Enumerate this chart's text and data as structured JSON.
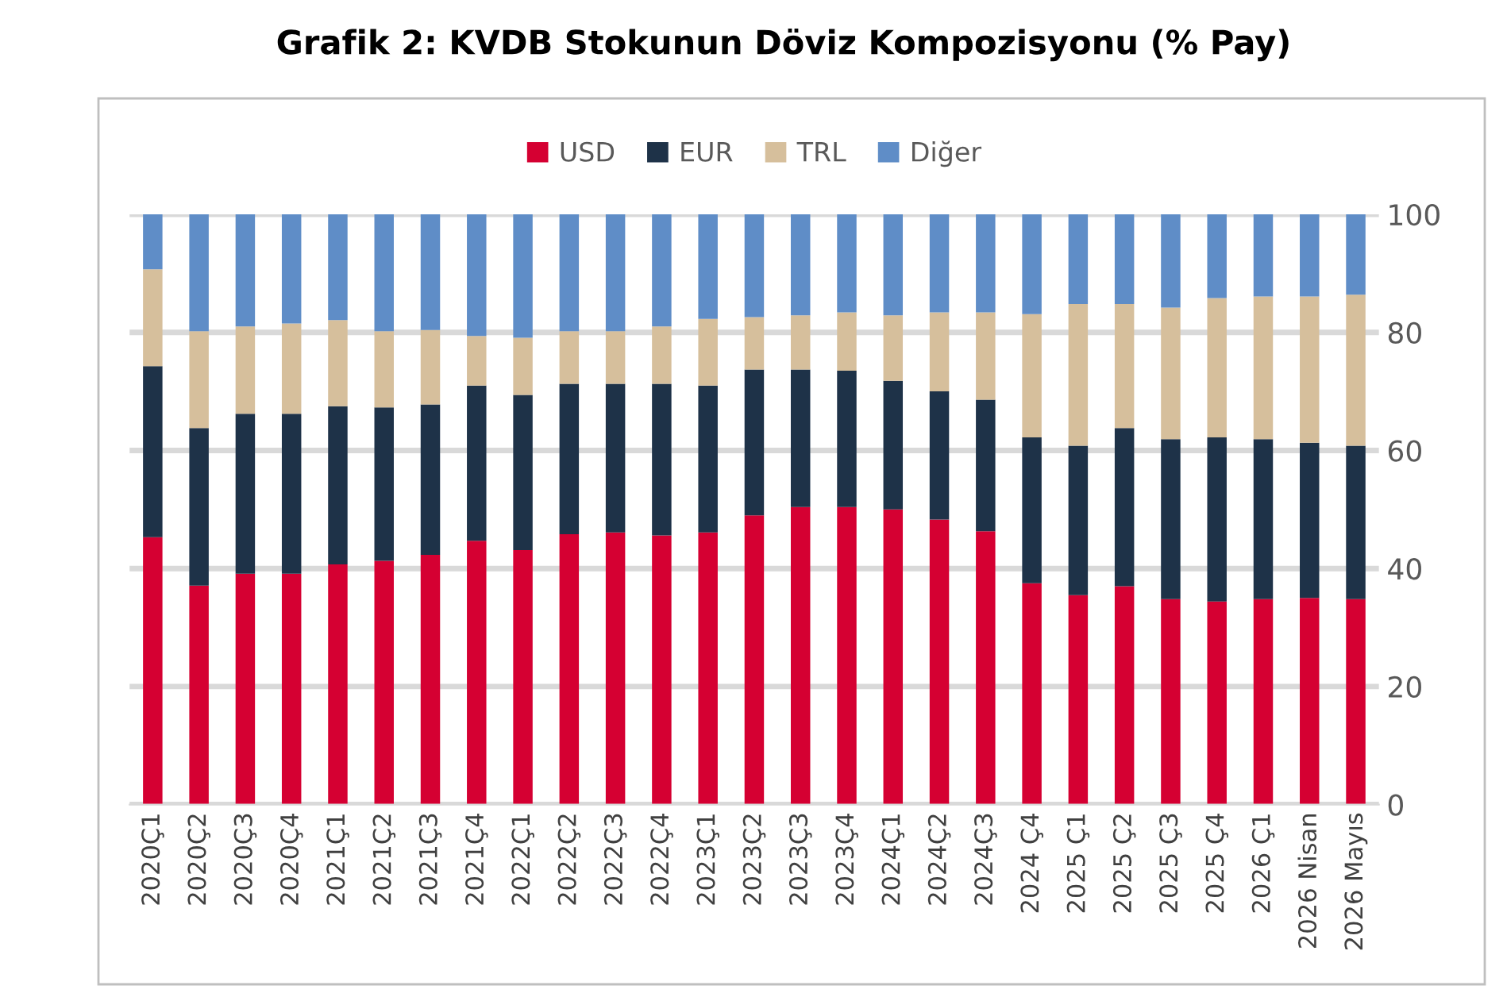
{
  "chart_data": {
    "type": "bar",
    "stacked": true,
    "title": "Grafik 2: KVDB Stokunun Döviz Kompozisyonu (% Pay)",
    "categories": [
      "2020Ç1",
      "2020Ç2",
      "2020Ç3",
      "2020Ç4",
      "2021Ç1",
      "2021Ç2",
      "2021Ç3",
      "2021Ç4",
      "2022Ç1",
      "2022Ç2",
      "2022Ç3",
      "2022Ç4",
      "2023Ç1",
      "2023Ç2",
      "2023Ç3",
      "2023Ç4",
      "2024Ç1",
      "2024Ç2",
      "2024Ç3",
      "2024 Ç4",
      "2025 Ç1",
      "2025 Ç2",
      "2025 Ç3",
      "2025 Ç4",
      "2026 Ç1",
      "2026 Nisan",
      "2026 Mayıs"
    ],
    "series": [
      {
        "name": "USD",
        "color": "#d50032",
        "values": [
          45.3,
          37.1,
          39.1,
          39.1,
          40.7,
          41.3,
          42.3,
          44.7,
          43.1,
          45.8,
          46.1,
          45.6,
          46.1,
          49.0,
          50.4,
          50.4,
          50.0,
          48.3,
          46.3,
          37.5,
          35.5,
          37.0,
          34.8,
          34.4,
          34.8,
          35.0,
          34.8
        ]
      },
      {
        "name": "EUR",
        "color": "#1e3248",
        "values": [
          29.0,
          26.7,
          27.1,
          27.1,
          26.8,
          26.0,
          25.5,
          26.3,
          26.3,
          25.5,
          25.2,
          25.7,
          24.9,
          24.7,
          23.3,
          23.1,
          21.8,
          21.7,
          22.3,
          24.7,
          25.3,
          26.8,
          27.1,
          27.8,
          27.1,
          26.3,
          26.0
        ]
      },
      {
        "name": "TRL",
        "color": "#d6bf9c",
        "values": [
          16.4,
          16.4,
          14.8,
          15.3,
          14.6,
          12.9,
          12.6,
          8.4,
          9.7,
          8.9,
          8.9,
          9.7,
          11.3,
          8.9,
          9.2,
          9.9,
          11.1,
          13.4,
          14.8,
          20.9,
          24.0,
          21.0,
          22.3,
          23.6,
          24.2,
          24.8,
          25.6
        ]
      },
      {
        "name": "Diğer",
        "color": "#5f8dc7",
        "values": [
          9.3,
          19.8,
          19.0,
          18.5,
          17.9,
          19.8,
          19.6,
          20.6,
          20.9,
          19.8,
          19.8,
          19.0,
          17.7,
          17.4,
          17.1,
          16.6,
          17.1,
          16.6,
          16.6,
          16.9,
          15.2,
          15.2,
          15.8,
          14.2,
          13.9,
          13.9,
          13.6
        ]
      }
    ],
    "ylim": [
      0,
      100
    ],
    "yticks": [
      0,
      20,
      40,
      60,
      80,
      100
    ],
    "grid": "y",
    "legend": "top"
  }
}
